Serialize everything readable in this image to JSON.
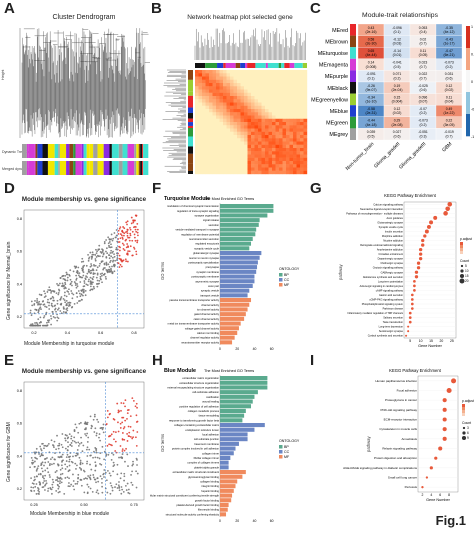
{
  "panel_labels": [
    "A",
    "B",
    "C",
    "D",
    "E",
    "F",
    "G",
    "H",
    "I"
  ],
  "figure_label": "Fig.1",
  "panelA": {
    "title": "Cluster Dendrogram",
    "ylabel": "Height",
    "row_labels": [
      "Dynamic Tree Cut",
      "Merged dynamic"
    ]
  },
  "panelB": {
    "title": "Network heatmap plot selected gene"
  },
  "panelC": {
    "title": "Module-trait relationships",
    "rows": [
      "MEred",
      "MEbrown",
      "MEturquoise",
      "MEmagenta",
      "MEpurple",
      "MEblack",
      "MEgreenyellow",
      "MEblue",
      "MEgreen",
      "MEgrey"
    ],
    "row_colors": [
      "#e8262a",
      "#8b4513",
      "#40e0d0",
      "#d63bd6",
      "#8a2be2",
      "#111111",
      "#9acd32",
      "#1e3fcf",
      "#2e9b3a",
      "#a0a0a0"
    ],
    "cols": [
      "Non-tumor_brain",
      "Glioma_gradeII",
      "Glioma_gradeIII",
      "GBM"
    ],
    "cells": [
      [
        {
          "v": "0.43",
          "p": "(2e-16)",
          "c": "#f2a58a"
        },
        {
          "v": "-0.096",
          "p": "(0.1)",
          "c": "#dfe8f4"
        },
        {
          "v": "0.053",
          "p": "(0.4)",
          "c": "#f6e6e0"
        },
        {
          "v": "-0.35",
          "p": "(4e-12)",
          "c": "#8fb5dc"
        }
      ],
      [
        {
          "v": "0.58",
          "p": "(2e-30)",
          "c": "#e66a4c"
        },
        {
          "v": "-0.12",
          "p": "(0.03)",
          "c": "#d8e4f2"
        },
        {
          "v": "0.02",
          "p": "(0.7)",
          "c": "#f4efee"
        },
        {
          "v": "-0.43",
          "p": "(1e-17)",
          "c": "#7ba7d6"
        }
      ],
      [
        {
          "v": "0.65",
          "p": "(4e-44)",
          "c": "#df503a"
        },
        {
          "v": "-0.14",
          "p": "(0.01)",
          "c": "#d3e1f1"
        },
        {
          "v": "0.11",
          "p": "(0.05)",
          "c": "#f7ddd3"
        },
        {
          "v": "-0.47",
          "p": "(6e-21)",
          "c": "#6f9ed2"
        }
      ],
      [
        {
          "v": "0.14",
          "p": "(0.008)",
          "c": "#f8dfd4"
        },
        {
          "v": "-0.041",
          "p": "(0.5)",
          "c": "#eaeff6"
        },
        {
          "v": "0.023",
          "p": "(0.7)",
          "c": "#f4efee"
        },
        {
          "v": "-0.073",
          "p": "(0.2)",
          "c": "#e2eaf5"
        }
      ],
      [
        {
          "v": "-0.091",
          "p": "(0.1)",
          "c": "#e0e9f5"
        },
        {
          "v": "0.071",
          "p": "(0.2)",
          "c": "#f6e5df"
        },
        {
          "v": "0.022",
          "p": "(0.7)",
          "c": "#f4efee"
        },
        {
          "v": "0.031",
          "p": "(0.6)",
          "c": "#f3eeed"
        }
      ],
      [
        {
          "v": "-0.26",
          "p": "(9e-07)",
          "c": "#aac7e4"
        },
        {
          "v": "0.19",
          "p": "(2e-04)",
          "c": "#f5cbbb"
        },
        {
          "v": "-0.025",
          "p": "(0.6)",
          "c": "#edf1f6"
        },
        {
          "v": "0.12",
          "p": "(0.02)",
          "c": "#f7dcd1"
        }
      ],
      [
        {
          "v": "-0.34",
          "p": "(1e-10)",
          "c": "#92b7dd"
        },
        {
          "v": "0.15",
          "p": "(0.004)",
          "c": "#f6d6c9"
        },
        {
          "v": "0.096",
          "p": "(0.07)",
          "c": "#f6e1d9"
        },
        {
          "v": "0.11",
          "p": "(0.04)",
          "c": "#f7ddd3"
        }
      ],
      [
        {
          "v": "-0.58",
          "p": "(2e-31)",
          "c": "#4d86c6"
        },
        {
          "v": "0.12",
          "p": "(0.02)",
          "c": "#f7dcd1"
        },
        {
          "v": "-0.07",
          "p": "(0.2)",
          "c": "#e3ebf5"
        },
        {
          "v": "0.49",
          "p": "(1e-22)",
          "c": "#ee8a6d"
        }
      ],
      [
        {
          "v": "-0.44",
          "p": "(4e-18)",
          "c": "#78a5d5"
        },
        {
          "v": "0.29",
          "p": "(2e-08)",
          "c": "#f2b49d"
        },
        {
          "v": "-0.073",
          "p": "(0.2)",
          "c": "#e2eaf5"
        },
        {
          "v": "0.22",
          "p": "(3e-05)",
          "c": "#f5c7b5"
        }
      ],
      [
        {
          "v": "0.039",
          "p": "(0.5)",
          "c": "#f5ece9"
        },
        {
          "v": "0.027",
          "p": "(0.6)",
          "c": "#f4efee"
        },
        {
          "v": "-0.051",
          "p": "(0.3)",
          "c": "#e8eef6"
        },
        {
          "v": "-0.019",
          "p": "(0.7)",
          "c": "#eff2f7"
        }
      ]
    ],
    "legend_ticks": [
      "1",
      "0.5",
      "0",
      "-0.5",
      "-1"
    ]
  },
  "panelD": {
    "title": "Module membership vs. gene significance",
    "xlabel": "Module Membership in turquoise module",
    "ylabel": "Gene significance for Normal_brain",
    "x_ticks": [
      "0.2",
      "0.4",
      "0.6",
      "0.8"
    ],
    "y_ticks": [
      "0.2",
      "0.4",
      "0.6",
      "0.8"
    ]
  },
  "panelE": {
    "title": "Module membership vs. gene significance",
    "xlabel": "Module Membership in blue module",
    "ylabel": "Gene significance for GBM",
    "x_ticks": [
      "0.25",
      "0.50",
      "0.75"
    ],
    "y_ticks": [
      "0.2",
      "0.4",
      "0.6",
      "0.8"
    ]
  },
  "panelF": {
    "title": "Turquoise Module",
    "subtitle": "The Most Enriched GO Terms",
    "ylabel": "GO terms",
    "xlabel": "Gene_Number",
    "x_ticks": [
      "0",
      "20",
      "40",
      "60"
    ],
    "legend_title": "ONTOLOGY",
    "legend_items": [
      {
        "name": "BP",
        "color": "#5aaa8e"
      },
      {
        "name": "CC",
        "color": "#6b86c4"
      },
      {
        "name": "MF",
        "color": "#f08a5d"
      }
    ],
    "bars": [
      {
        "t": "modulation of chemical synaptic transmission",
        "v": 62,
        "o": "BP"
      },
      {
        "t": "regulation of trans-synaptic signaling",
        "v": 62,
        "o": "BP"
      },
      {
        "t": "synapse organization",
        "v": 55,
        "o": "BP"
      },
      {
        "t": "signal release",
        "v": 46,
        "o": "BP"
      },
      {
        "t": "secretion",
        "v": 45,
        "o": "BP"
      },
      {
        "t": "vesicle-mediated transport in synapse",
        "v": 42,
        "o": "BP"
      },
      {
        "t": "regulation of membrane potential",
        "v": 41,
        "o": "BP"
      },
      {
        "t": "neurotransmitter secretion",
        "v": 38,
        "o": "BP"
      },
      {
        "t": "regulated exocytosis",
        "v": 36,
        "o": "BP"
      },
      {
        "t": "synaptic vesicle cycle",
        "v": 34,
        "o": "BP"
      },
      {
        "t": "glutamatergic synapse",
        "v": 48,
        "o": "CC"
      },
      {
        "t": "neuron to neuron synapse",
        "v": 46,
        "o": "CC"
      },
      {
        "t": "postsynaptic specialization",
        "v": 44,
        "o": "CC"
      },
      {
        "t": "presynapse",
        "v": 43,
        "o": "CC"
      },
      {
        "t": "synaptic membrane",
        "v": 42,
        "o": "CC"
      },
      {
        "t": "postsynaptic membrane",
        "v": 40,
        "o": "CC"
      },
      {
        "t": "asymmetric synapse",
        "v": 40,
        "o": "CC"
      },
      {
        "t": "axon part",
        "v": 38,
        "o": "CC"
      },
      {
        "t": "synaptic vesicle",
        "v": 34,
        "o": "CC"
      },
      {
        "t": "transport vesicle",
        "v": 32,
        "o": "CC"
      },
      {
        "t": "passive transmembrane transporter activity",
        "v": 36,
        "o": "MF"
      },
      {
        "t": "channel activity",
        "v": 34,
        "o": "MF"
      },
      {
        "t": "ion channel activity",
        "v": 32,
        "o": "MF"
      },
      {
        "t": "gated channel activity",
        "v": 30,
        "o": "MF"
      },
      {
        "t": "cation channel activity",
        "v": 28,
        "o": "MF"
      },
      {
        "t": "metal ion transmembrane transporter activity",
        "v": 24,
        "o": "MF"
      },
      {
        "t": "voltage-gated channel activity",
        "v": 22,
        "o": "MF"
      },
      {
        "t": "calcium ion binding",
        "v": 20,
        "o": "MF"
      },
      {
        "t": "channel regulator activity",
        "v": 17,
        "o": "MF"
      },
      {
        "t": "neurotransmitter receptor activity",
        "v": 14,
        "o": "MF"
      }
    ]
  },
  "panelG": {
    "title": "KEGG Pathway Enrichment",
    "ylabel": "pathway",
    "xlabel": "Gene Number",
    "x_ticks": [
      "5",
      "10",
      "15",
      "20",
      "25"
    ],
    "legend_padj": "p.adjust",
    "legend_count": "Count",
    "terms": [
      {
        "t": "Calcium signaling pathway",
        "x": 24,
        "s": 5
      },
      {
        "t": "Neuroactive ligand-receptor interaction",
        "x": 23,
        "s": 5
      },
      {
        "t": "Pathways of neurodegeneration - multiple diseases",
        "x": 22,
        "s": 5
      },
      {
        "t": "Axon guidance",
        "x": 17,
        "s": 4
      },
      {
        "t": "Glutamatergic synapse",
        "x": 15,
        "s": 4
      },
      {
        "t": "Synaptic vesicle cycle",
        "x": 14,
        "s": 4
      },
      {
        "t": "Insulin secretion",
        "x": 13,
        "s": 4
      },
      {
        "t": "Morphine addiction",
        "x": 12,
        "s": 3
      },
      {
        "t": "Nicotine addiction",
        "x": 11,
        "s": 3
      },
      {
        "t": "Retrograde endocannabinoid signaling",
        "x": 11,
        "s": 3
      },
      {
        "t": "Amphetamine addiction",
        "x": 10,
        "s": 3
      },
      {
        "t": "Circadian entrainment",
        "x": 10,
        "s": 3
      },
      {
        "t": "Dopaminergic synapse",
        "x": 10,
        "s": 3
      },
      {
        "t": "Cholinergic synapse",
        "x": 9,
        "s": 3
      },
      {
        "t": "Oxytocin signaling pathway",
        "x": 9,
        "s": 3
      },
      {
        "t": "GABAergic synapse",
        "x": 8,
        "s": 3
      },
      {
        "t": "Aldosterone synthesis and secretion",
        "x": 8,
        "s": 3
      },
      {
        "t": "Long-term potentiation",
        "x": 7,
        "s": 2
      },
      {
        "t": "Adrenergic signaling in cardiomyocytes",
        "x": 7,
        "s": 2
      },
      {
        "t": "cAMP signaling pathway",
        "x": 7,
        "s": 2
      },
      {
        "t": "Gastric acid secretion",
        "x": 6,
        "s": 2
      },
      {
        "t": "cGMP-PKG signaling pathway",
        "x": 6,
        "s": 2
      },
      {
        "t": "Phosphatidylinositol signaling system",
        "x": 6,
        "s": 2
      },
      {
        "t": "Parkinson disease",
        "x": 6,
        "s": 2
      },
      {
        "t": "Inflammatory mediator regulation of TRP channels",
        "x": 5,
        "s": 2
      },
      {
        "t": "Salivary secretion",
        "x": 5,
        "s": 2
      },
      {
        "t": "Taste transduction",
        "x": 5,
        "s": 2
      },
      {
        "t": "Long-term depression",
        "x": 4,
        "s": 1
      },
      {
        "t": "Serotonergic synapse",
        "x": 4,
        "s": 1
      },
      {
        "t": "Cortisol synthesis and secretion",
        "x": 3,
        "s": 1
      }
    ],
    "size_legend": [
      "5",
      "10",
      "15",
      "20"
    ]
  },
  "panelH": {
    "title": "Blue Module",
    "subtitle": "The Most Enriched GO Terms",
    "ylabel": "GO terms",
    "xlabel": "Gene_Number",
    "x_ticks": [
      "0",
      "20",
      "40",
      "60"
    ],
    "legend_title": "ONTOLOGY",
    "legend_items": [
      {
        "name": "BP",
        "color": "#5aaa8e"
      },
      {
        "name": "CC",
        "color": "#6b86c4"
      },
      {
        "name": "MF",
        "color": "#f08a5d"
      }
    ],
    "bars": [
      {
        "t": "extracellular matrix organization",
        "v": 55,
        "o": "BP"
      },
      {
        "t": "extracellular structure organization",
        "v": 55,
        "o": "BP"
      },
      {
        "t": "external encapsulating structure organization",
        "v": 55,
        "o": "BP"
      },
      {
        "t": "cell-substrate adhesion",
        "v": 44,
        "o": "BP"
      },
      {
        "t": "ossification",
        "v": 40,
        "o": "BP"
      },
      {
        "t": "wound healing",
        "v": 38,
        "o": "BP"
      },
      {
        "t": "positive regulation of cell adhesion",
        "v": 36,
        "o": "BP"
      },
      {
        "t": "collagen metabolic process",
        "v": 30,
        "o": "BP"
      },
      {
        "t": "tissue remodeling",
        "v": 28,
        "o": "BP"
      },
      {
        "t": "response to transforming growth factor beta",
        "v": 26,
        "o": "BP"
      },
      {
        "t": "collagen-containing extracellular matrix",
        "v": 52,
        "o": "CC"
      },
      {
        "t": "endoplasmic reticulum lumen",
        "v": 40,
        "o": "CC"
      },
      {
        "t": "focal adhesion",
        "v": 32,
        "o": "CC"
      },
      {
        "t": "cell-substrate junction",
        "v": 32,
        "o": "CC"
      },
      {
        "t": "basement membrane",
        "v": 22,
        "o": "CC"
      },
      {
        "t": "protein complex involved in cell adhesion",
        "v": 18,
        "o": "CC"
      },
      {
        "t": "collagen trimer",
        "v": 16,
        "o": "CC"
      },
      {
        "t": "fibrillar collagen trimer",
        "v": 12,
        "o": "CC"
      },
      {
        "t": "complex of collagen trimers",
        "v": 10,
        "o": "CC"
      },
      {
        "t": "platelet alpha granule",
        "v": 10,
        "o": "CC"
      },
      {
        "t": "extracellular matrix structural constituent",
        "v": 30,
        "o": "MF"
      },
      {
        "t": "glycosaminoglycan binding",
        "v": 26,
        "o": "MF"
      },
      {
        "t": "collagen binding",
        "v": 20,
        "o": "MF"
      },
      {
        "t": "integrin binding",
        "v": 18,
        "o": "MF"
      },
      {
        "t": "heparin binding",
        "v": 16,
        "o": "MF"
      },
      {
        "t": "extracellular matrix structural constituent conferring tensile strength",
        "v": 14,
        "o": "MF"
      },
      {
        "t": "growth factor binding",
        "v": 13,
        "o": "MF"
      },
      {
        "t": "platelet-derived growth factor binding",
        "v": 10,
        "o": "MF"
      },
      {
        "t": "fibronectin binding",
        "v": 9,
        "o": "MF"
      },
      {
        "t": "structural molecule activity conferring elasticity",
        "v": 7,
        "o": "MF"
      }
    ]
  },
  "panelI": {
    "title": "KEGG Pathway Enrichment",
    "ylabel": "pathway",
    "xlabel": "Gene Number",
    "x_ticks": [
      "2",
      "4",
      "6",
      "8"
    ],
    "legend_padj": "p.adjust",
    "legend_count": "Count",
    "terms": [
      {
        "t": "Human papillomavirus infection",
        "x": 9,
        "s": 4
      },
      {
        "t": "Focal adhesion",
        "x": 8,
        "s": 4
      },
      {
        "t": "Proteoglycans in cancer",
        "x": 7,
        "s": 3
      },
      {
        "t": "PI3K-Akt signaling pathway",
        "x": 7,
        "s": 3
      },
      {
        "t": "ECM-receptor interaction",
        "x": 7,
        "s": 3
      },
      {
        "t": "Cytoskeleton in muscle cells",
        "x": 7,
        "s": 3
      },
      {
        "t": "Amoebiasis",
        "x": 7,
        "s": 3
      },
      {
        "t": "Relaxin signaling pathway",
        "x": 6,
        "s": 3
      },
      {
        "t": "Protein digestion and absorption",
        "x": 5,
        "s": 2
      },
      {
        "t": "AGE-RAGE signaling pathway in diabetic complications",
        "x": 4,
        "s": 2
      },
      {
        "t": "Small cell lung cancer",
        "x": 3,
        "s": 1
      },
      {
        "t": "Pertussis",
        "x": 2,
        "s": 1
      }
    ],
    "size_legend": [
      "3",
      "6",
      "9"
    ]
  }
}
